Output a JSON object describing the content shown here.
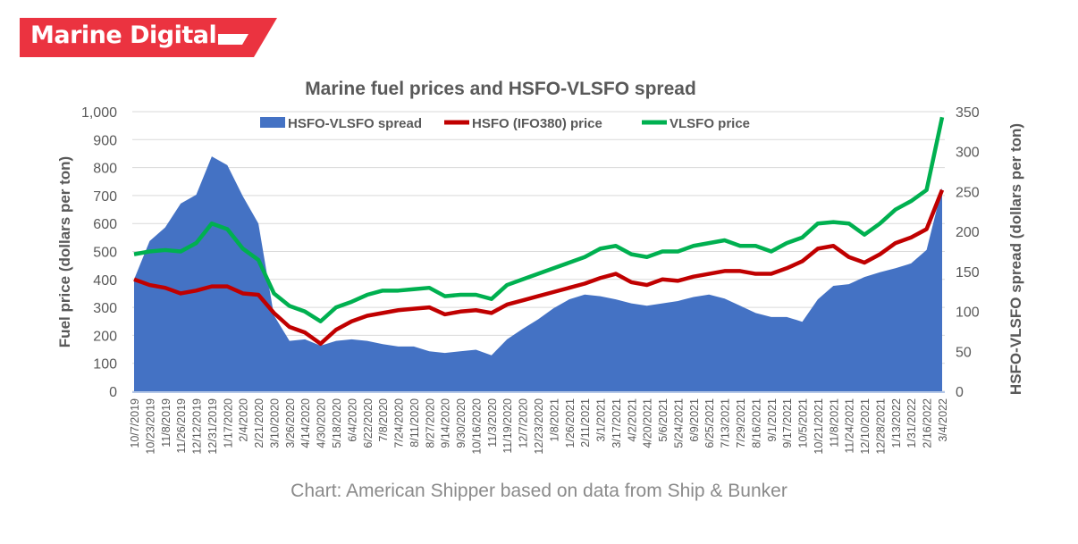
{
  "brand": {
    "name": "Marine Digital",
    "color": "#EB3340"
  },
  "caption": "Chart: American Shipper based on data from Ship & Bunker",
  "chart_data": {
    "type": "line",
    "title": "Marine fuel prices and HSFO-VLSFO spread",
    "ylabel": "Fuel price  (dollars per ton)",
    "y2label": "HSFO-VLSFO spread  (dollars per ton)",
    "ylim": [
      0,
      1000
    ],
    "y2lim": [
      0,
      350
    ],
    "yticks": [
      "0",
      "100",
      "200",
      "300",
      "400",
      "500",
      "600",
      "700",
      "800",
      "900",
      "1,000"
    ],
    "y2ticks": [
      "0",
      "50",
      "100",
      "150",
      "200",
      "250",
      "300",
      "350"
    ],
    "grid": true,
    "legend": "top",
    "categories": [
      "10/7/2019",
      "10/23/2019",
      "11/8/2019",
      "11/26/2019",
      "12/12/2019",
      "12/31/2019",
      "1/17/2020",
      "2/4/2020",
      "2/21/2020",
      "3/10/2020",
      "3/26/2020",
      "4/14/2020",
      "4/30/2020",
      "5/18/2020",
      "6/4/2020",
      "6/22/2020",
      "7/8/2020",
      "7/24/2020",
      "8/11/2020",
      "8/27/2020",
      "9/14/2020",
      "9/30/2020",
      "10/16/2020",
      "11/3/2020",
      "11/19/2020",
      "12/7/2020",
      "12/23/2020",
      "1/8/2021",
      "1/26/2021",
      "2/11/2021",
      "3/1/2021",
      "3/17/2021",
      "4/2/2021",
      "4/20/2021",
      "5/6/2021",
      "5/24/2021",
      "6/9/2021",
      "6/25/2021",
      "7/13/2021",
      "7/29/2021",
      "8/16/2021",
      "9/1/2021",
      "9/17/2021",
      "10/5/2021",
      "10/21/2021",
      "11/8/2021",
      "11/24/2021",
      "12/10/2021",
      "12/28/2021",
      "1/13/2022",
      "1/31/2022",
      "2/16/2022",
      "3/4/2022"
    ],
    "series": [
      {
        "name": "HSFO-VLSFO spread",
        "type": "area",
        "axis": "right",
        "color": "#4472C4",
        "values": [
          140,
          188,
          205,
          235,
          246,
          294,
          283,
          244,
          210,
          95,
          63,
          65,
          57,
          63,
          65,
          63,
          59,
          56,
          56,
          50,
          48,
          50,
          52,
          45,
          65,
          78,
          90,
          104,
          115,
          121,
          119,
          115,
          110,
          107,
          110,
          113,
          118,
          121,
          116,
          107,
          98,
          93,
          93,
          87,
          115,
          132,
          134,
          143,
          149,
          154,
          160,
          177,
          255
        ]
      },
      {
        "name": "HSFO (IFO380) price",
        "type": "line",
        "axis": "left",
        "color": "#C00000",
        "values": [
          400,
          380,
          370,
          350,
          360,
          375,
          375,
          350,
          345,
          280,
          230,
          210,
          170,
          220,
          250,
          270,
          280,
          290,
          295,
          300,
          275,
          285,
          290,
          280,
          310,
          325,
          340,
          355,
          370,
          385,
          405,
          420,
          390,
          380,
          400,
          395,
          410,
          420,
          430,
          430,
          420,
          420,
          440,
          465,
          510,
          520,
          480,
          460,
          490,
          530,
          550,
          580,
          720
        ]
      },
      {
        "name": "VLSFO price",
        "type": "line",
        "axis": "left",
        "color": "#00B050",
        "values": [
          490,
          500,
          505,
          500,
          530,
          600,
          580,
          510,
          470,
          350,
          305,
          285,
          250,
          300,
          320,
          345,
          360,
          360,
          365,
          370,
          340,
          345,
          345,
          330,
          380,
          400,
          420,
          440,
          460,
          480,
          510,
          520,
          490,
          480,
          500,
          500,
          520,
          530,
          540,
          520,
          520,
          500,
          530,
          550,
          600,
          605,
          600,
          560,
          600,
          650,
          680,
          720,
          980
        ]
      }
    ]
  }
}
